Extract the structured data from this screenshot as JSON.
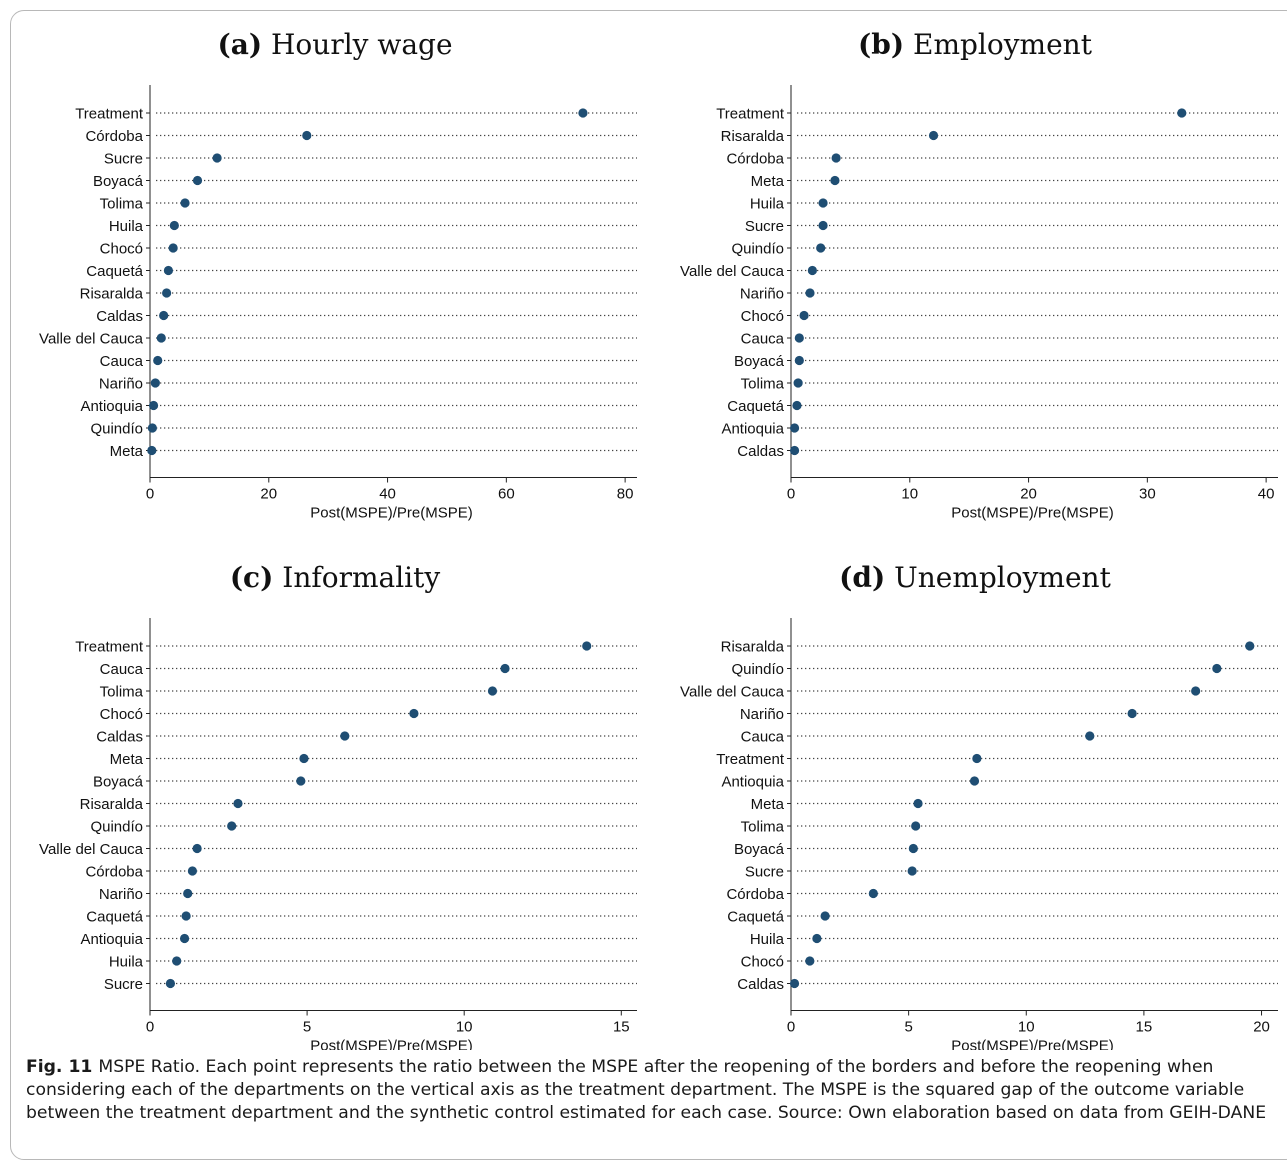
{
  "caption": {
    "label": "Fig. 11",
    "text": "MSPE Ratio. Each point represents the ratio between the MSPE after the reopening of the borders and before the reopening when considering each of the departments on the vertical axis as the treatment department. The MSPE is the squared gap of the outcome variable between the treatment department and the synthetic control estimated for each case. Source: Own elaboration based on data from GEIH-DANE"
  },
  "colors": {
    "marker": "#1f4e73",
    "dots": "#444444",
    "axis": "#222222"
  },
  "chart_data": [
    {
      "type": "scatter",
      "panel_label": "(a)",
      "title": "Hourly wage",
      "xlabel": "Post(MSPE)/Pre(MSPE)",
      "xlim": [
        0,
        82
      ],
      "xticks": [
        0,
        20,
        40,
        60,
        80
      ],
      "categories": [
        "Treatment",
        "Córdoba",
        "Sucre",
        "Boyacá",
        "Tolima",
        "Huila",
        "Chocó",
        "Caquetá",
        "Risaralda",
        "Caldas",
        "Valle del Cauca",
        "Cauca",
        "Nariño",
        "Antioquia",
        "Quindío",
        "Meta"
      ],
      "values": [
        72.9,
        26.4,
        11.3,
        8.0,
        5.9,
        4.1,
        3.9,
        3.1,
        2.8,
        2.3,
        1.9,
        1.3,
        0.9,
        0.6,
        0.4,
        0.3
      ]
    },
    {
      "type": "scatter",
      "panel_label": "(b)",
      "title": "Employment",
      "xlabel": "Post(MSPE)/Pre(MSPE)",
      "xlim": [
        0,
        41
      ],
      "xticks": [
        0,
        10,
        20,
        30,
        40
      ],
      "categories": [
        "Treatment",
        "Risaralda",
        "Córdoba",
        "Meta",
        "Huila",
        "Sucre",
        "Quindío",
        "Valle del Cauca",
        "Nariño",
        "Chocó",
        "Cauca",
        "Boyacá",
        "Tolima",
        "Caquetá",
        "Antioquia",
        "Caldas"
      ],
      "values": [
        32.9,
        12.0,
        3.8,
        3.7,
        2.7,
        2.7,
        2.5,
        1.8,
        1.6,
        1.1,
        0.7,
        0.7,
        0.6,
        0.5,
        0.3,
        0.3
      ]
    },
    {
      "type": "scatter",
      "panel_label": "(c)",
      "title": "Informality",
      "xlabel": "Post(MSPE)/Pre(MSPE)",
      "xlim": [
        0,
        15.5
      ],
      "xticks": [
        0,
        5,
        10,
        15
      ],
      "categories": [
        "Treatment",
        "Cauca",
        "Tolima",
        "Chocó",
        "Caldas",
        "Meta",
        "Boyacá",
        "Risaralda",
        "Quindío",
        "Valle del Cauca",
        "Córdoba",
        "Nariño",
        "Caquetá",
        "Antioquia",
        "Huila",
        "Sucre"
      ],
      "values": [
        13.9,
        11.3,
        10.9,
        8.4,
        6.2,
        4.9,
        4.8,
        2.8,
        2.6,
        1.5,
        1.35,
        1.2,
        1.15,
        1.1,
        0.85,
        0.65
      ]
    },
    {
      "type": "scatter",
      "panel_label": "(d)",
      "title": "Unemployment",
      "xlabel": "Post(MSPE)/Pre(MSPE)",
      "xlim": [
        0,
        20.7
      ],
      "xticks": [
        0,
        5,
        10,
        15,
        20
      ],
      "categories": [
        "Risaralda",
        "Quindío",
        "Valle del Cauca",
        "Nariño",
        "Cauca",
        "Treatment",
        "Antioquia",
        "Meta",
        "Tolima",
        "Boyacá",
        "Sucre",
        "Córdoba",
        "Caquetá",
        "Huila",
        "Chocó",
        "Caldas"
      ],
      "values": [
        19.5,
        18.1,
        17.2,
        14.5,
        12.7,
        7.9,
        7.8,
        5.4,
        5.3,
        5.2,
        5.15,
        3.5,
        1.45,
        1.1,
        0.8,
        0.15
      ]
    }
  ]
}
